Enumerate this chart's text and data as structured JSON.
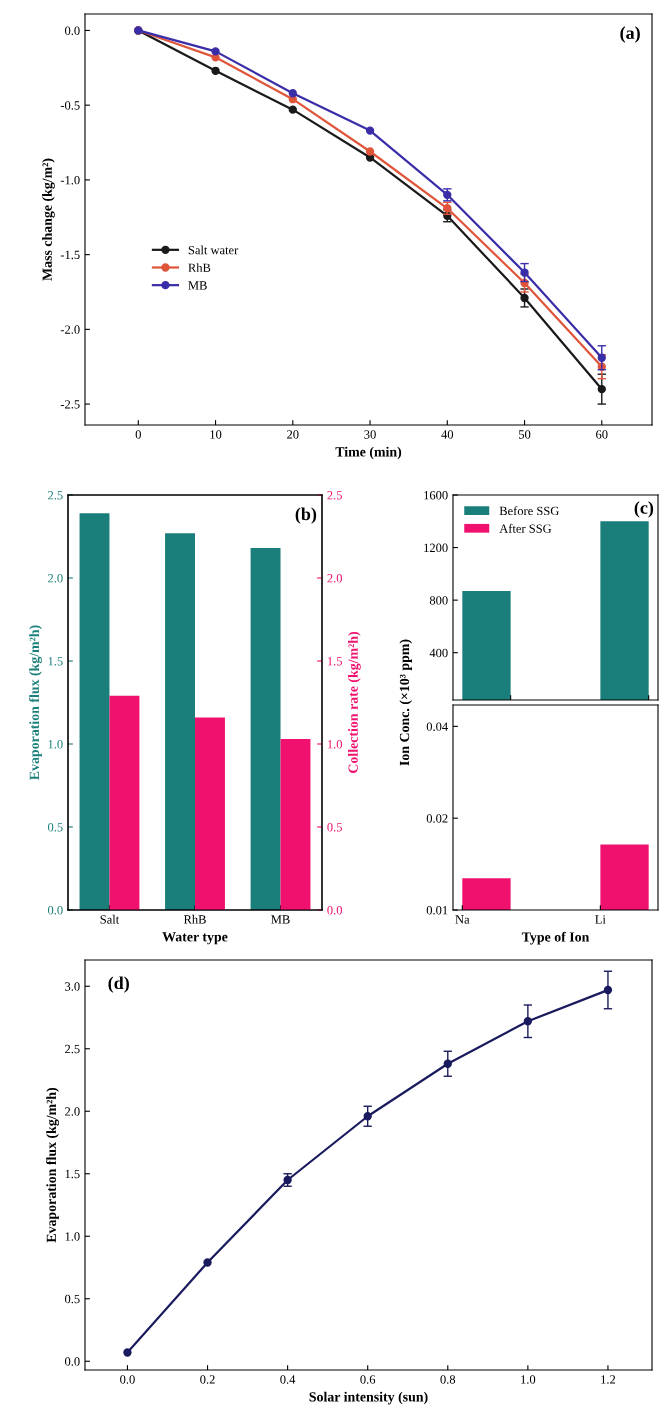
{
  "chart_data": [
    {
      "type": "line",
      "xlabel": "Time (min)",
      "ylabel": "Mass change (kg/m²)",
      "annotations": [
        "(a)"
      ],
      "x": [
        0,
        10,
        20,
        30,
        40,
        50,
        60
      ],
      "xlim": [
        -6.9,
        66.5
      ],
      "xticks": [
        0,
        10,
        20,
        30,
        40,
        50,
        60
      ],
      "ylim": [
        -2.64,
        0.11
      ],
      "yticks": [
        {
          "value": 0,
          "label": "0.0"
        },
        {
          "value": -0.5,
          "label": "-0.5"
        },
        {
          "value": -1.0,
          "label": "-1.0"
        },
        {
          "value": -1.5,
          "label": "-1.5"
        },
        {
          "value": -2.0,
          "label": "-2.0"
        },
        {
          "value": -2.5,
          "label": "-2.5"
        }
      ],
      "marker": "circle",
      "legend": "left",
      "series": [
        {
          "name": "Salt water",
          "color": "#1a1a1a",
          "values": [
            0,
            -0.27,
            -0.53,
            -0.85,
            -1.24,
            -1.79,
            -2.4
          ],
          "errors": [
            null,
            null,
            null,
            null,
            0.04,
            0.06,
            0.1
          ]
        },
        {
          "name": "RhB",
          "color": "#e0553a",
          "values": [
            0,
            -0.18,
            -0.46,
            -0.81,
            -1.19,
            -1.69,
            -2.25
          ],
          "errors": [
            null,
            null,
            null,
            null,
            0.04,
            0.06,
            0.08
          ]
        },
        {
          "name": "MB",
          "color": "#3a2ea8",
          "values": [
            0,
            -0.14,
            -0.42,
            -0.67,
            -1.1,
            -1.62,
            -2.19
          ],
          "errors": [
            null,
            null,
            null,
            null,
            0.04,
            0.06,
            0.08
          ]
        }
      ]
    },
    {
      "type": "bar",
      "xlabel": "Water type",
      "ylabel": "Evaporation flux (kg/m²h)",
      "y2label": "Collection rate (kg/m²h)",
      "annotations": [
        "(b)"
      ],
      "categories": [
        "Salt",
        "RhB",
        "MB"
      ],
      "ylim": [
        0,
        2.5
      ],
      "yticks": [
        {
          "value": 0,
          "label": "0.0"
        },
        {
          "value": 0.5,
          "label": "0.5"
        },
        {
          "value": 1.0,
          "label": "1.0"
        },
        {
          "value": 1.5,
          "label": "1.5"
        },
        {
          "value": 2.0,
          "label": "2.0"
        },
        {
          "value": 2.5,
          "label": "2.5"
        }
      ],
      "y2lim": [
        0,
        2.5
      ],
      "y2ticks": [
        {
          "value": 0,
          "label": "0.0"
        },
        {
          "value": 0.5,
          "label": "0.5"
        },
        {
          "value": 1.0,
          "label": "1.0"
        },
        {
          "value": 1.5,
          "label": "1.5"
        },
        {
          "value": 2.0,
          "label": "2.0"
        },
        {
          "value": 2.5,
          "label": "2.5"
        }
      ],
      "series": [
        {
          "color": "#1a7f7a",
          "values": [
            2.39,
            2.27,
            2.18
          ]
        },
        {
          "color": "#f0106e",
          "values": [
            1.29,
            1.16,
            1.03
          ],
          "axis": "y2"
        }
      ]
    },
    {
      "type": "bar",
      "ylabel": "Ion Conc. (×10³ ppm)",
      "annotations": [
        "(c)"
      ],
      "categories": [
        null,
        null
      ],
      "tick_labels": "y",
      "ylim": [
        40,
        1600
      ],
      "yticks": [
        400,
        800,
        1200,
        1600
      ],
      "legend": "top left",
      "series": [
        {
          "name": "Before SSG",
          "color": "#1a7f7a",
          "values": [
            870,
            1400
          ]
        },
        {
          "name": "After SSG",
          "color": "#f0106e",
          "values": [
            null,
            null
          ]
        }
      ]
    },
    {
      "type": "bar",
      "xlabel": "Type of Ion",
      "categories": [
        "Na",
        "Li"
      ],
      "log": "y",
      "ylim": [
        0.01,
        0.047
      ],
      "yticks": [
        0.01,
        0.02,
        0.04
      ],
      "series": [
        {
          "color": "#1a7f7a",
          "values": [
            null,
            null
          ]
        },
        {
          "color": "#f0106e",
          "values": [
            0.0127,
            0.0164
          ]
        }
      ]
    },
    {
      "type": "line",
      "xlabel": "Solar intensity (sun)",
      "ylabel": "Evaporation flux (kg/m²h)",
      "annotations": [
        "(d)"
      ],
      "x": [
        0.0,
        0.2,
        0.4,
        0.6,
        0.8,
        1.0,
        1.2
      ],
      "xlim": [
        -0.106,
        1.31
      ],
      "xticks": [
        {
          "value": 0,
          "label": "0.0"
        },
        {
          "value": 0.2,
          "label": "0.2"
        },
        {
          "value": 0.4,
          "label": "0.4"
        },
        {
          "value": 0.6,
          "label": "0.6"
        },
        {
          "value": 0.8,
          "label": "0.8"
        },
        {
          "value": 1.0,
          "label": "1.0"
        },
        {
          "value": 1.2,
          "label": "1.2"
        }
      ],
      "ylim": [
        -0.07,
        3.21
      ],
      "yticks": [
        {
          "value": 0,
          "label": "0.0"
        },
        {
          "value": 0.5,
          "label": "0.5"
        },
        {
          "value": 1.0,
          "label": "1.0"
        },
        {
          "value": 1.5,
          "label": "1.5"
        },
        {
          "value": 2.0,
          "label": "2.0"
        },
        {
          "value": 2.5,
          "label": "2.5"
        },
        {
          "value": 3.0,
          "label": "3.0"
        }
      ],
      "marker": "circle",
      "series": [
        {
          "color": "#1a1a5e",
          "values": [
            0.07,
            0.79,
            1.45,
            1.96,
            2.38,
            2.72,
            2.97
          ],
          "errors": [
            null,
            null,
            0.05,
            0.08,
            0.1,
            0.13,
            0.15
          ]
        }
      ]
    }
  ]
}
